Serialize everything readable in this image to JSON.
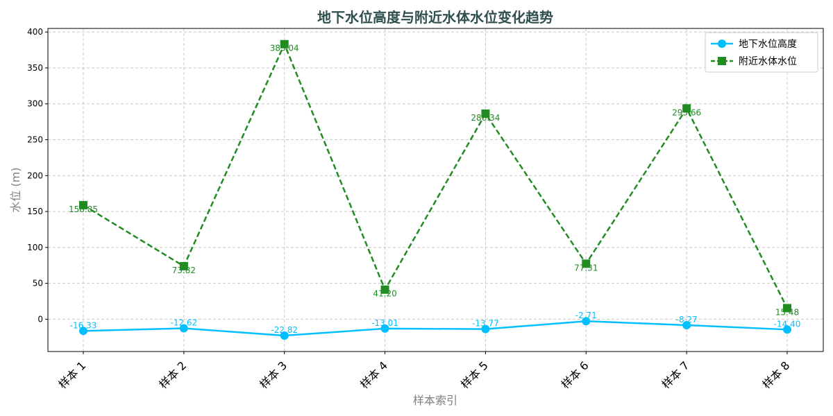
{
  "chart_data": {
    "type": "line",
    "title": "地下水位高度与附近水体水位变化趋势",
    "xlabel": "样本索引",
    "ylabel": "水位 (m)",
    "categories": [
      "样本 1",
      "样本 2",
      "样本 3",
      "样本 4",
      "样本 5",
      "样本 6",
      "样本 7",
      "样本 8"
    ],
    "ylim": [
      -45,
      405
    ],
    "yticks": [
      0,
      50,
      100,
      150,
      200,
      250,
      300,
      350,
      400
    ],
    "grid": true,
    "legend_position": "top-right",
    "series": [
      {
        "name": "地下水位高度",
        "values": [
          -16.33,
          -12.62,
          -22.82,
          -13.01,
          -13.77,
          -2.71,
          -8.27,
          -14.4
        ],
        "labels": [
          "-16.33",
          "-12.62",
          "-22.82",
          "-13.01",
          "-13.77",
          "-2.71",
          "-8.27",
          "-14.40"
        ],
        "color": "#00bfff",
        "marker": "circle",
        "linestyle": "solid"
      },
      {
        "name": "附近水体水位",
        "values": [
          158.85,
          73.82,
          383.04,
          41.2,
          286.34,
          77.31,
          293.66,
          15.48
        ],
        "labels": [
          "158.85",
          "73.82",
          "383.04",
          "41.20",
          "286.34",
          "77.31",
          "293.66",
          "15.48"
        ],
        "color": "#228b22",
        "marker": "square",
        "linestyle": "dashed"
      }
    ]
  }
}
